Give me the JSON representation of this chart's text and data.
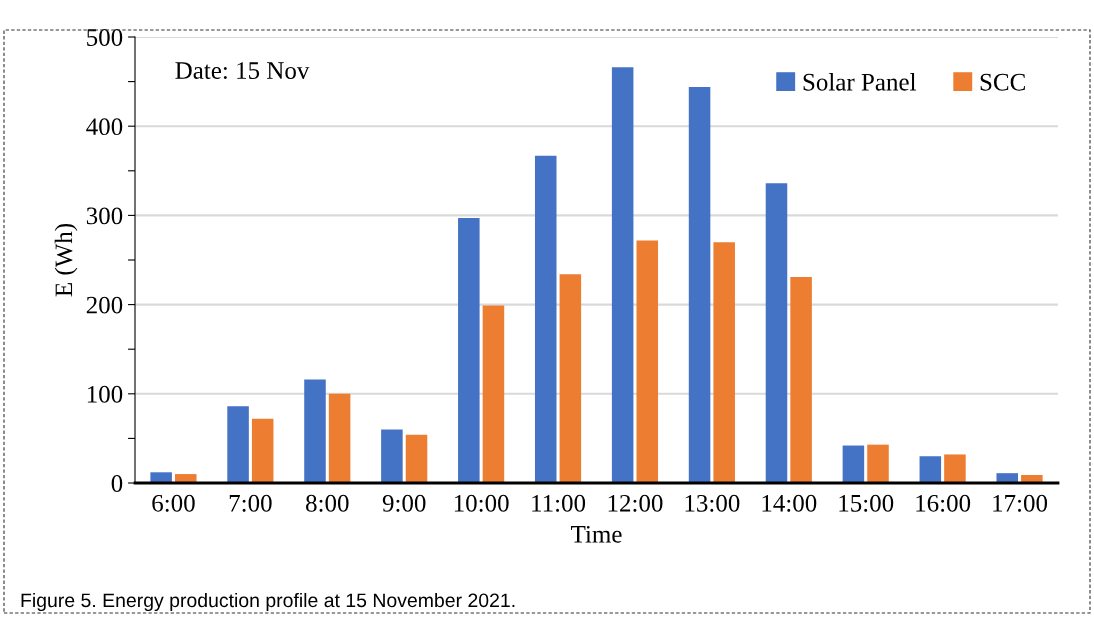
{
  "chart_data": {
    "type": "bar",
    "categories": [
      "6:00",
      "7:00",
      "8:00",
      "9:00",
      "10:00",
      "11:00",
      "12:00",
      "13:00",
      "14:00",
      "15:00",
      "16:00",
      "17:00"
    ],
    "series": [
      {
        "name": "Solar Panel",
        "color": "#4472c4",
        "values": [
          12,
          86,
          116,
          60,
          297,
          367,
          466,
          444,
          336,
          42,
          30,
          11
        ]
      },
      {
        "name": "SCC",
        "color": "#ed7d31",
        "values": [
          10,
          72,
          100,
          54,
          199,
          234,
          272,
          270,
          231,
          43,
          32,
          9
        ]
      }
    ],
    "xlabel": "Time",
    "ylabel": "E (Wh)",
    "ylim": [
      0,
      500
    ],
    "yticks": [
      0,
      {
        "value": 50,
        "label": null
      },
      100,
      {
        "value": 150,
        "label": null
      },
      200,
      {
        "value": 250,
        "label": null
      },
      300,
      {
        "value": 350,
        "label": null
      },
      400,
      {
        "value": 450,
        "label": null
      },
      500
    ],
    "grid": "y",
    "legend": "top right",
    "annotations": [
      "Date: 15 Nov",
      "Figure 5. Energy production profile at 15 November 2021."
    ]
  }
}
